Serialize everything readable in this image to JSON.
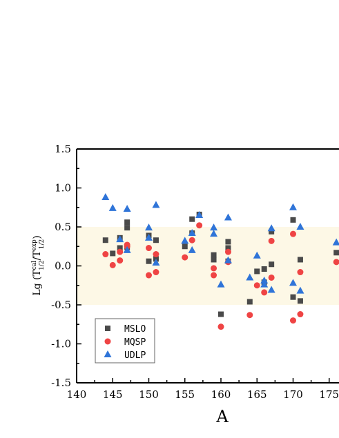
{
  "chart_data": {
    "type": "scatter",
    "xlabel": "A",
    "ylabel_parts": {
      "prefix": "Lg (T",
      "num_sub": "1/2",
      "num_sup": "cal",
      "sep": "/T",
      "den_sub": "1/2",
      "den_sup": "exp",
      "suffix": ")"
    },
    "xlim": [
      140,
      176
    ],
    "ylim": [
      -1.5,
      1.5
    ],
    "xticks": [
      140,
      145,
      150,
      155,
      160,
      165,
      170,
      175
    ],
    "xtick_labels": [
      "140",
      "145",
      "150",
      "155",
      "160",
      "165",
      "170",
      "175"
    ],
    "yticks": [
      -1.5,
      -1.0,
      -0.5,
      0.0,
      0.5,
      1.0,
      1.5
    ],
    "ytick_labels": [
      "-1.5",
      "-1.0",
      "-0.5",
      "0.0",
      "0.5",
      "1.0",
      "1.5"
    ],
    "band": {
      "y_from": -0.5,
      "y_to": 0.5,
      "color": "#fdf8e6"
    },
    "grid": false,
    "legend_position": "bottom-left",
    "series": [
      {
        "name": "MSLO",
        "marker": "square",
        "color": "#4a4a4a",
        "points": [
          [
            144,
            0.33
          ],
          [
            145,
            0.16
          ],
          [
            146,
            0.23
          ],
          [
            146,
            0.36
          ],
          [
            147,
            0.56
          ],
          [
            147,
            0.49
          ],
          [
            147,
            0.24
          ],
          [
            150,
            0.39
          ],
          [
            150,
            0.06
          ],
          [
            151,
            0.33
          ],
          [
            151,
            0.09
          ],
          [
            155,
            0.25
          ],
          [
            156,
            0.6
          ],
          [
            156,
            0.42
          ],
          [
            157,
            0.66
          ],
          [
            159,
            0.14
          ],
          [
            159,
            0.08
          ],
          [
            160,
            -0.62
          ],
          [
            161,
            0.31
          ],
          [
            161,
            0.23
          ],
          [
            161,
            0.06
          ],
          [
            164,
            -0.46
          ],
          [
            165,
            -0.07
          ],
          [
            166,
            -0.04
          ],
          [
            166,
            -0.21
          ],
          [
            167,
            0.02
          ],
          [
            167,
            0.44
          ],
          [
            170,
            0.59
          ],
          [
            170,
            -0.4
          ],
          [
            171,
            0.08
          ],
          [
            171,
            -0.45
          ],
          [
            176,
            0.17
          ]
        ]
      },
      {
        "name": "MQSP",
        "marker": "circle",
        "color": "#ef4444",
        "points": [
          [
            144,
            0.15
          ],
          [
            145,
            0.01
          ],
          [
            146,
            0.18
          ],
          [
            146,
            0.07
          ],
          [
            147,
            0.27
          ],
          [
            147,
            0.25
          ],
          [
            150,
            0.23
          ],
          [
            150,
            -0.12
          ],
          [
            151,
            0.15
          ],
          [
            151,
            -0.08
          ],
          [
            155,
            0.11
          ],
          [
            156,
            0.33
          ],
          [
            157,
            0.52
          ],
          [
            159,
            -0.03
          ],
          [
            159,
            -0.12
          ],
          [
            160,
            -0.78
          ],
          [
            161,
            0.18
          ],
          [
            161,
            0.05
          ],
          [
            164,
            -0.63
          ],
          [
            165,
            -0.25
          ],
          [
            166,
            -0.34
          ],
          [
            167,
            0.32
          ],
          [
            167,
            -0.15
          ],
          [
            170,
            0.41
          ],
          [
            170,
            -0.7
          ],
          [
            171,
            -0.08
          ],
          [
            171,
            -0.62
          ],
          [
            176,
            0.05
          ]
        ]
      },
      {
        "name": "UDLP",
        "marker": "triangle",
        "color": "#2f74d8",
        "points": [
          [
            144,
            0.88
          ],
          [
            145,
            0.74
          ],
          [
            146,
            0.34
          ],
          [
            147,
            0.73
          ],
          [
            147,
            0.2
          ],
          [
            150,
            0.49
          ],
          [
            150,
            0.36
          ],
          [
            151,
            0.78
          ],
          [
            151,
            0.04
          ],
          [
            155,
            0.32
          ],
          [
            156,
            0.42
          ],
          [
            156,
            0.2
          ],
          [
            157,
            0.65
          ],
          [
            159,
            0.49
          ],
          [
            159,
            0.41
          ],
          [
            160,
            -0.24
          ],
          [
            161,
            0.62
          ],
          [
            161,
            0.07
          ],
          [
            164,
            -0.15
          ],
          [
            165,
            0.13
          ],
          [
            166,
            -0.19
          ],
          [
            166,
            -0.24
          ],
          [
            167,
            0.48
          ],
          [
            167,
            -0.31
          ],
          [
            170,
            0.75
          ],
          [
            170,
            -0.22
          ],
          [
            171,
            0.5
          ],
          [
            171,
            -0.32
          ],
          [
            176,
            0.3
          ]
        ]
      }
    ]
  }
}
